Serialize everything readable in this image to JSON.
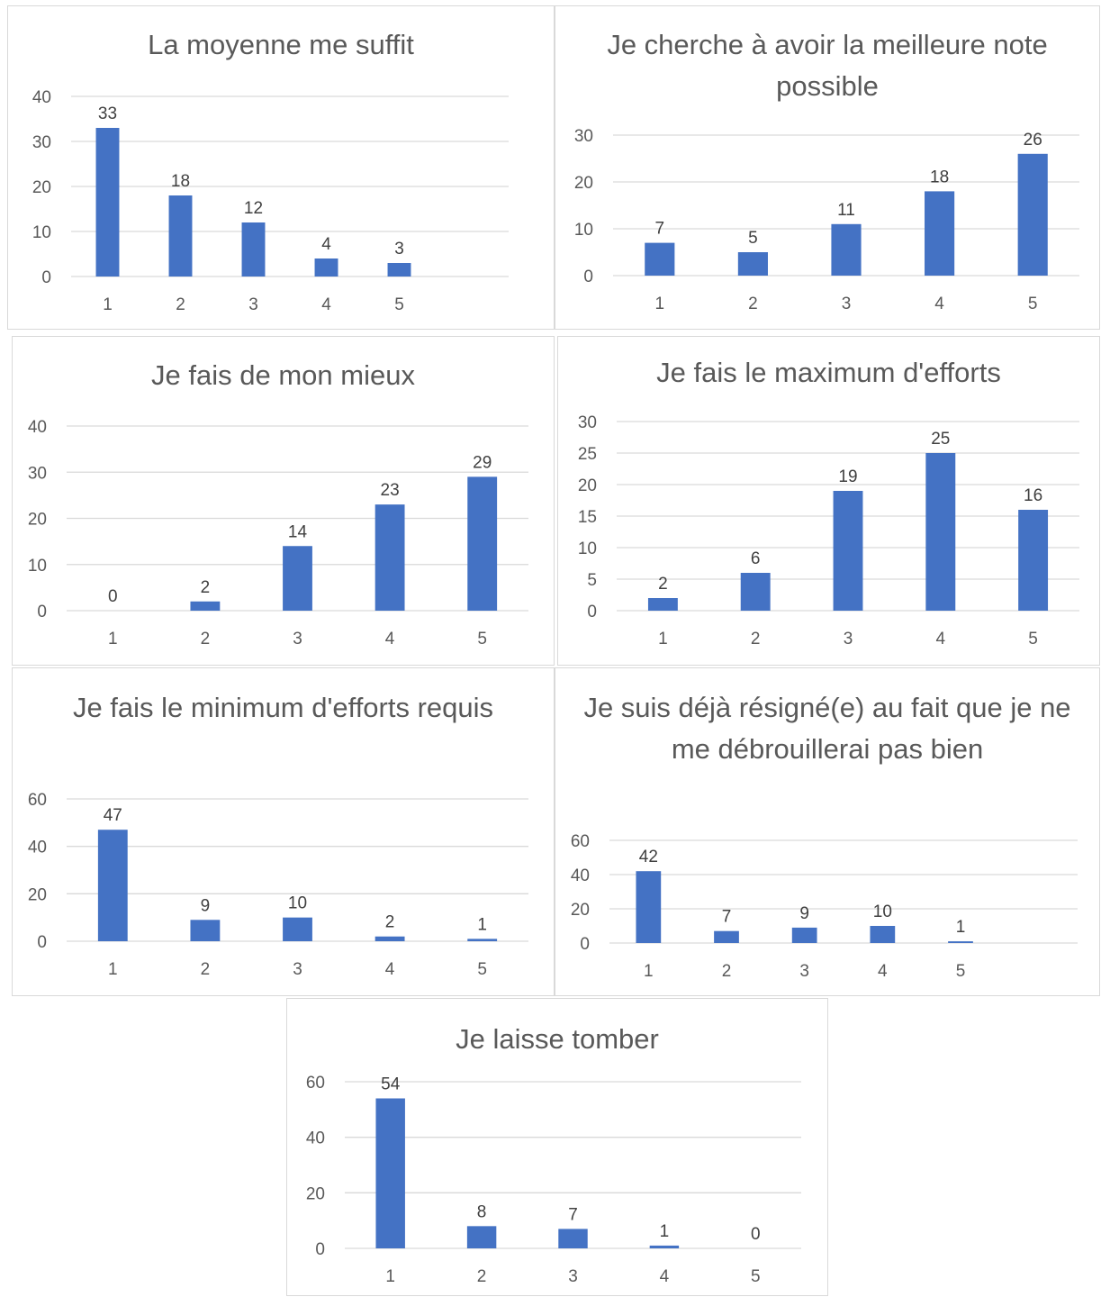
{
  "colors": {
    "bar": "#4472c4",
    "grid": "#d9d9d9",
    "text": "#595959",
    "label": "#404040"
  },
  "chart_data": [
    {
      "type": "bar",
      "title": "La moyenne me suffit",
      "categories": [
        "1",
        "2",
        "3",
        "4",
        "5"
      ],
      "values": [
        33,
        18,
        12,
        4,
        3
      ],
      "yticks": [
        0,
        10,
        20,
        30,
        40
      ],
      "ylim": [
        0,
        40
      ],
      "xlabel": "",
      "ylabel": "",
      "grid": true
    },
    {
      "type": "bar",
      "title": "Je cherche à avoir la meilleure note possible",
      "categories": [
        "1",
        "2",
        "3",
        "4",
        "5"
      ],
      "values": [
        7,
        5,
        11,
        18,
        26
      ],
      "yticks": [
        0,
        10,
        20,
        30
      ],
      "ylim": [
        0,
        30
      ],
      "xlabel": "",
      "ylabel": "",
      "grid": true
    },
    {
      "type": "bar",
      "title": "Je fais de mon mieux",
      "categories": [
        "1",
        "2",
        "3",
        "4",
        "5"
      ],
      "values": [
        0,
        2,
        14,
        23,
        29
      ],
      "yticks": [
        0,
        10,
        20,
        30,
        40
      ],
      "ylim": [
        0,
        40
      ],
      "xlabel": "",
      "ylabel": "",
      "grid": true
    },
    {
      "type": "bar",
      "title": "Je fais le maximum d'efforts",
      "categories": [
        "1",
        "2",
        "3",
        "4",
        "5"
      ],
      "values": [
        2,
        6,
        19,
        25,
        16
      ],
      "yticks": [
        0,
        5,
        10,
        15,
        20,
        25,
        30
      ],
      "ylim": [
        0,
        30
      ],
      "xlabel": "",
      "ylabel": "",
      "grid": true
    },
    {
      "type": "bar",
      "title": "Je fais le minimum d'efforts requis",
      "categories": [
        "1",
        "2",
        "3",
        "4",
        "5"
      ],
      "values": [
        47,
        9,
        10,
        2,
        1
      ],
      "yticks": [
        0,
        20,
        40,
        60
      ],
      "ylim": [
        0,
        60
      ],
      "xlabel": "",
      "ylabel": "",
      "grid": true
    },
    {
      "type": "bar",
      "title": "Je suis déjà résigné(e) au fait que je ne me débrouillerai pas bien",
      "categories": [
        "1",
        "2",
        "3",
        "4",
        "5"
      ],
      "values": [
        42,
        7,
        9,
        10,
        1
      ],
      "yticks": [
        0,
        20,
        40,
        60
      ],
      "ylim": [
        0,
        60
      ],
      "xlabel": "",
      "ylabel": "",
      "grid": true
    },
    {
      "type": "bar",
      "title": "Je laisse tomber",
      "categories": [
        "1",
        "2",
        "3",
        "4",
        "5"
      ],
      "values": [
        54,
        8,
        7,
        1,
        0
      ],
      "yticks": [
        0,
        20,
        40,
        60
      ],
      "ylim": [
        0,
        60
      ],
      "xlabel": "",
      "ylabel": "",
      "grid": true
    }
  ]
}
